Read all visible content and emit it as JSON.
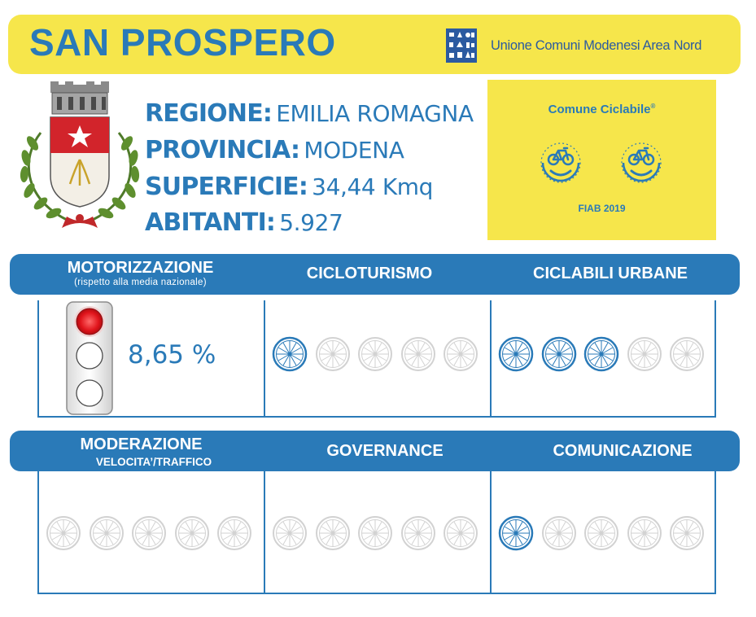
{
  "header": {
    "town_name": "SAN PROSPERO",
    "union_name": "Unione Comuni Modenesi Area Nord",
    "brand_color": "#2a7ab8",
    "accent_color": "#f6e64b"
  },
  "info": {
    "regione_label": "REGIONE:",
    "regione_value": "EMILIA ROMAGNA",
    "provincia_label": "PROVINCIA:",
    "provincia_value": "MODENA",
    "superficie_label": "SUPERFICIE:",
    "superficie_value": "34,44 Kmq",
    "abitanti_label": "ABITANTI:",
    "abitanti_value": "5.927"
  },
  "badge": {
    "title": "Comune Ciclabile",
    "title_mark": "®",
    "year": "FIAB 2019",
    "icon": "smiling-bicycle-icon"
  },
  "motorizzazione": {
    "label": "MOTORIZZAZIONE",
    "sublabel": "(rispetto alla media nazionale)",
    "value": "8,65 %",
    "traffic_light_active": "red"
  },
  "categories": {
    "cicloturismo": {
      "label": "CICLOTURISMO",
      "score": 1,
      "max": 5
    },
    "ciclabili_urbane": {
      "label": "CICLABILI URBANE",
      "score": 3,
      "max": 5
    },
    "moderazione": {
      "label": "MODERAZIONE",
      "sublabel": "VELOCITA’/TRAFFICO",
      "score": 0,
      "max": 5
    },
    "governance": {
      "label": "GOVERNANCE",
      "score": 0,
      "max": 5
    },
    "comunicazione": {
      "label": "COMUNICAZIONE",
      "score": 1,
      "max": 5
    }
  },
  "icons": {
    "wheel": "bicycle-wheel-icon",
    "crest": "coat-of-arms-icon",
    "traffic_light": "traffic-light-icon"
  },
  "colors": {
    "wheel_active": "#2a7ab8",
    "wheel_inactive": "#d2d2d2"
  }
}
